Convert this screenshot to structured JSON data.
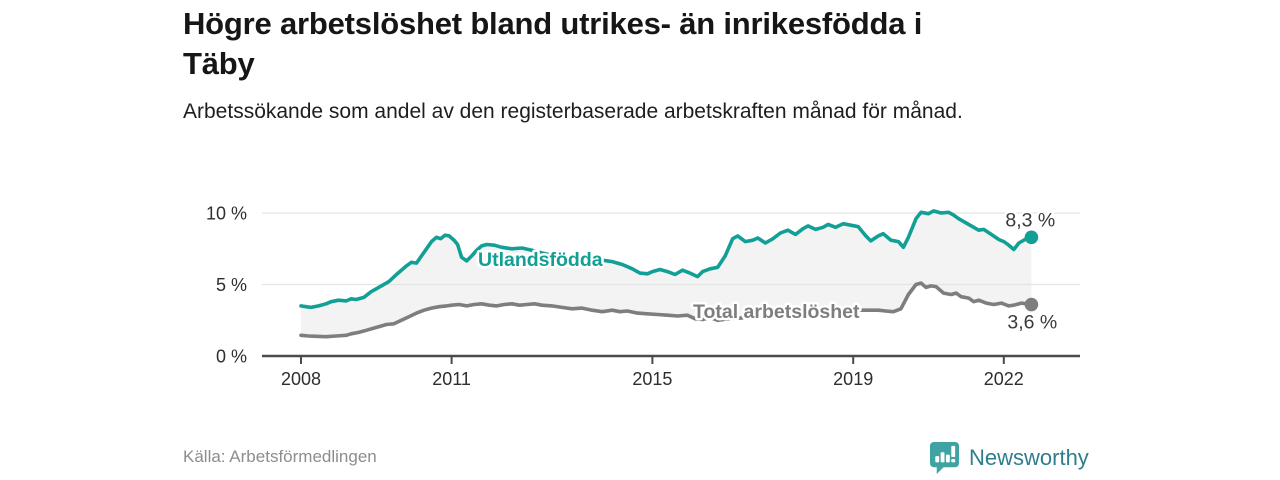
{
  "header": {
    "title": "Högre arbetslöshet bland utrikes- än inrikesfödda i Täby",
    "subtitle": "Arbetssökande som andel av den registerbaserade arbetskraften månad för månad."
  },
  "footer": {
    "source": "Källa: Arbetsförmedlingen",
    "brand_name": "Newsworthy"
  },
  "colors": {
    "accent_teal": "#12a096",
    "line_gray": "#7e7e7e",
    "band_fill": "#f3f3f3",
    "gridline": "#e4e4e4",
    "axis": "#4b4b4b",
    "logo_icon": "#3ea3a2",
    "logo_text": "#2f7e8c"
  },
  "chart_data": {
    "type": "line",
    "title": "Högre arbetslöshet bland utrikes- än inrikesfödda i Täby",
    "subtitle": "Arbetssökande som andel av den registerbaserade arbetskraften månad för månad.",
    "xlabel": "",
    "ylabel": "",
    "unit": "%",
    "x_ticks": [
      2008,
      2011,
      2015,
      2019,
      2022
    ],
    "y_ticks": [
      {
        "value": 0,
        "label": "0 %"
      },
      {
        "value": 5,
        "label": "5 %"
      },
      {
        "value": 10,
        "label": "10 %"
      }
    ],
    "x_range": [
      2007.2,
      2023.5
    ],
    "y_range": [
      0,
      11
    ],
    "grid": "horizontal",
    "band_fill_between_series": true,
    "legend_position": "inline-labels",
    "series": [
      {
        "name": "Utlandsfödda",
        "color": "#12a096",
        "end_value": 8.3,
        "end_label": "8,3 %",
        "points": [
          [
            2008.0,
            3.5
          ],
          [
            2008.1,
            3.45
          ],
          [
            2008.2,
            3.4
          ],
          [
            2008.35,
            3.5
          ],
          [
            2008.5,
            3.65
          ],
          [
            2008.6,
            3.8
          ],
          [
            2008.75,
            3.9
          ],
          [
            2008.9,
            3.85
          ],
          [
            2009.0,
            4.0
          ],
          [
            2009.1,
            3.95
          ],
          [
            2009.25,
            4.1
          ],
          [
            2009.4,
            4.5
          ],
          [
            2009.5,
            4.7
          ],
          [
            2009.6,
            4.9
          ],
          [
            2009.75,
            5.2
          ],
          [
            2009.9,
            5.7
          ],
          [
            2010.0,
            6.0
          ],
          [
            2010.1,
            6.3
          ],
          [
            2010.2,
            6.55
          ],
          [
            2010.3,
            6.5
          ],
          [
            2010.4,
            7.0
          ],
          [
            2010.5,
            7.5
          ],
          [
            2010.6,
            8.0
          ],
          [
            2010.7,
            8.3
          ],
          [
            2010.78,
            8.2
          ],
          [
            2010.87,
            8.45
          ],
          [
            2010.95,
            8.4
          ],
          [
            2011.05,
            8.1
          ],
          [
            2011.12,
            7.8
          ],
          [
            2011.2,
            6.9
          ],
          [
            2011.3,
            6.65
          ],
          [
            2011.4,
            7.0
          ],
          [
            2011.5,
            7.4
          ],
          [
            2011.6,
            7.7
          ],
          [
            2011.7,
            7.8
          ],
          [
            2011.85,
            7.75
          ],
          [
            2012.0,
            7.6
          ],
          [
            2012.2,
            7.5
          ],
          [
            2012.4,
            7.55
          ],
          [
            2012.6,
            7.4
          ],
          [
            2012.8,
            7.2
          ],
          [
            2013.0,
            7.05
          ],
          [
            2013.25,
            6.9
          ],
          [
            2013.5,
            6.85
          ],
          [
            2013.75,
            6.75
          ],
          [
            2014.0,
            6.7
          ],
          [
            2014.2,
            6.6
          ],
          [
            2014.4,
            6.4
          ],
          [
            2014.6,
            6.1
          ],
          [
            2014.75,
            5.8
          ],
          [
            2014.9,
            5.75
          ],
          [
            2015.0,
            5.9
          ],
          [
            2015.15,
            6.05
          ],
          [
            2015.3,
            5.9
          ],
          [
            2015.45,
            5.7
          ],
          [
            2015.6,
            6.0
          ],
          [
            2015.75,
            5.8
          ],
          [
            2015.9,
            5.55
          ],
          [
            2016.0,
            5.9
          ],
          [
            2016.15,
            6.1
          ],
          [
            2016.3,
            6.2
          ],
          [
            2016.45,
            7.0
          ],
          [
            2016.6,
            8.2
          ],
          [
            2016.7,
            8.4
          ],
          [
            2016.85,
            8.0
          ],
          [
            2017.0,
            8.1
          ],
          [
            2017.1,
            8.25
          ],
          [
            2017.25,
            7.9
          ],
          [
            2017.4,
            8.2
          ],
          [
            2017.55,
            8.6
          ],
          [
            2017.7,
            8.8
          ],
          [
            2017.85,
            8.5
          ],
          [
            2018.0,
            8.9
          ],
          [
            2018.1,
            9.1
          ],
          [
            2018.25,
            8.85
          ],
          [
            2018.4,
            9.0
          ],
          [
            2018.5,
            9.2
          ],
          [
            2018.65,
            9.0
          ],
          [
            2018.8,
            9.25
          ],
          [
            2018.95,
            9.15
          ],
          [
            2019.1,
            9.05
          ],
          [
            2019.25,
            8.4
          ],
          [
            2019.35,
            8.05
          ],
          [
            2019.5,
            8.4
          ],
          [
            2019.6,
            8.55
          ],
          [
            2019.75,
            8.1
          ],
          [
            2019.9,
            8.0
          ],
          [
            2020.0,
            7.6
          ],
          [
            2020.1,
            8.3
          ],
          [
            2020.25,
            9.6
          ],
          [
            2020.35,
            10.05
          ],
          [
            2020.5,
            9.95
          ],
          [
            2020.6,
            10.15
          ],
          [
            2020.75,
            10.0
          ],
          [
            2020.9,
            10.05
          ],
          [
            2021.0,
            9.85
          ],
          [
            2021.1,
            9.6
          ],
          [
            2021.25,
            9.3
          ],
          [
            2021.4,
            9.0
          ],
          [
            2021.5,
            8.8
          ],
          [
            2021.6,
            8.85
          ],
          [
            2021.75,
            8.5
          ],
          [
            2021.9,
            8.15
          ],
          [
            2022.0,
            8.0
          ],
          [
            2022.1,
            7.75
          ],
          [
            2022.2,
            7.45
          ],
          [
            2022.3,
            7.9
          ],
          [
            2022.45,
            8.2
          ],
          [
            2022.55,
            8.3
          ]
        ]
      },
      {
        "name": "Total arbetslöshet",
        "color": "#7e7e7e",
        "end_value": 3.6,
        "end_label": "3,6 %",
        "points": [
          [
            2008.0,
            1.45
          ],
          [
            2008.15,
            1.4
          ],
          [
            2008.3,
            1.38
          ],
          [
            2008.5,
            1.35
          ],
          [
            2008.7,
            1.4
          ],
          [
            2008.9,
            1.45
          ],
          [
            2009.0,
            1.55
          ],
          [
            2009.15,
            1.65
          ],
          [
            2009.3,
            1.8
          ],
          [
            2009.45,
            1.95
          ],
          [
            2009.6,
            2.1
          ],
          [
            2009.7,
            2.2
          ],
          [
            2009.85,
            2.25
          ],
          [
            2010.0,
            2.5
          ],
          [
            2010.15,
            2.75
          ],
          [
            2010.3,
            3.0
          ],
          [
            2010.45,
            3.2
          ],
          [
            2010.6,
            3.35
          ],
          [
            2010.75,
            3.45
          ],
          [
            2010.9,
            3.5
          ],
          [
            2011.0,
            3.55
          ],
          [
            2011.15,
            3.6
          ],
          [
            2011.3,
            3.5
          ],
          [
            2011.45,
            3.6
          ],
          [
            2011.6,
            3.65
          ],
          [
            2011.75,
            3.55
          ],
          [
            2011.9,
            3.5
          ],
          [
            2012.05,
            3.6
          ],
          [
            2012.2,
            3.65
          ],
          [
            2012.35,
            3.55
          ],
          [
            2012.5,
            3.6
          ],
          [
            2012.65,
            3.65
          ],
          [
            2012.8,
            3.55
          ],
          [
            2013.0,
            3.5
          ],
          [
            2013.2,
            3.4
          ],
          [
            2013.4,
            3.3
          ],
          [
            2013.6,
            3.35
          ],
          [
            2013.8,
            3.2
          ],
          [
            2014.0,
            3.1
          ],
          [
            2014.2,
            3.2
          ],
          [
            2014.35,
            3.1
          ],
          [
            2014.5,
            3.15
          ],
          [
            2014.7,
            3.0
          ],
          [
            2014.9,
            2.95
          ],
          [
            2015.1,
            2.9
          ],
          [
            2015.3,
            2.85
          ],
          [
            2015.5,
            2.8
          ],
          [
            2015.7,
            2.85
          ],
          [
            2015.85,
            2.6
          ],
          [
            2016.0,
            2.55
          ],
          [
            2016.15,
            2.7
          ],
          [
            2016.3,
            2.5
          ],
          [
            2016.5,
            2.6
          ],
          [
            2016.75,
            2.65
          ],
          [
            2017.0,
            2.75
          ],
          [
            2017.25,
            2.85
          ],
          [
            2017.5,
            2.9
          ],
          [
            2017.75,
            2.95
          ],
          [
            2018.0,
            3.0
          ],
          [
            2018.25,
            3.05
          ],
          [
            2018.5,
            3.1
          ],
          [
            2018.75,
            3.15
          ],
          [
            2019.0,
            3.2
          ],
          [
            2019.25,
            3.2
          ],
          [
            2019.5,
            3.2
          ],
          [
            2019.65,
            3.15
          ],
          [
            2019.8,
            3.1
          ],
          [
            2019.95,
            3.3
          ],
          [
            2020.1,
            4.3
          ],
          [
            2020.25,
            5.0
          ],
          [
            2020.35,
            5.1
          ],
          [
            2020.45,
            4.8
          ],
          [
            2020.55,
            4.9
          ],
          [
            2020.65,
            4.85
          ],
          [
            2020.8,
            4.4
          ],
          [
            2020.95,
            4.3
          ],
          [
            2021.05,
            4.4
          ],
          [
            2021.15,
            4.15
          ],
          [
            2021.3,
            4.05
          ],
          [
            2021.4,
            3.8
          ],
          [
            2021.5,
            3.9
          ],
          [
            2021.65,
            3.7
          ],
          [
            2021.8,
            3.6
          ],
          [
            2021.95,
            3.7
          ],
          [
            2022.1,
            3.5
          ],
          [
            2022.2,
            3.55
          ],
          [
            2022.35,
            3.7
          ],
          [
            2022.45,
            3.65
          ],
          [
            2022.55,
            3.6
          ]
        ]
      }
    ]
  }
}
